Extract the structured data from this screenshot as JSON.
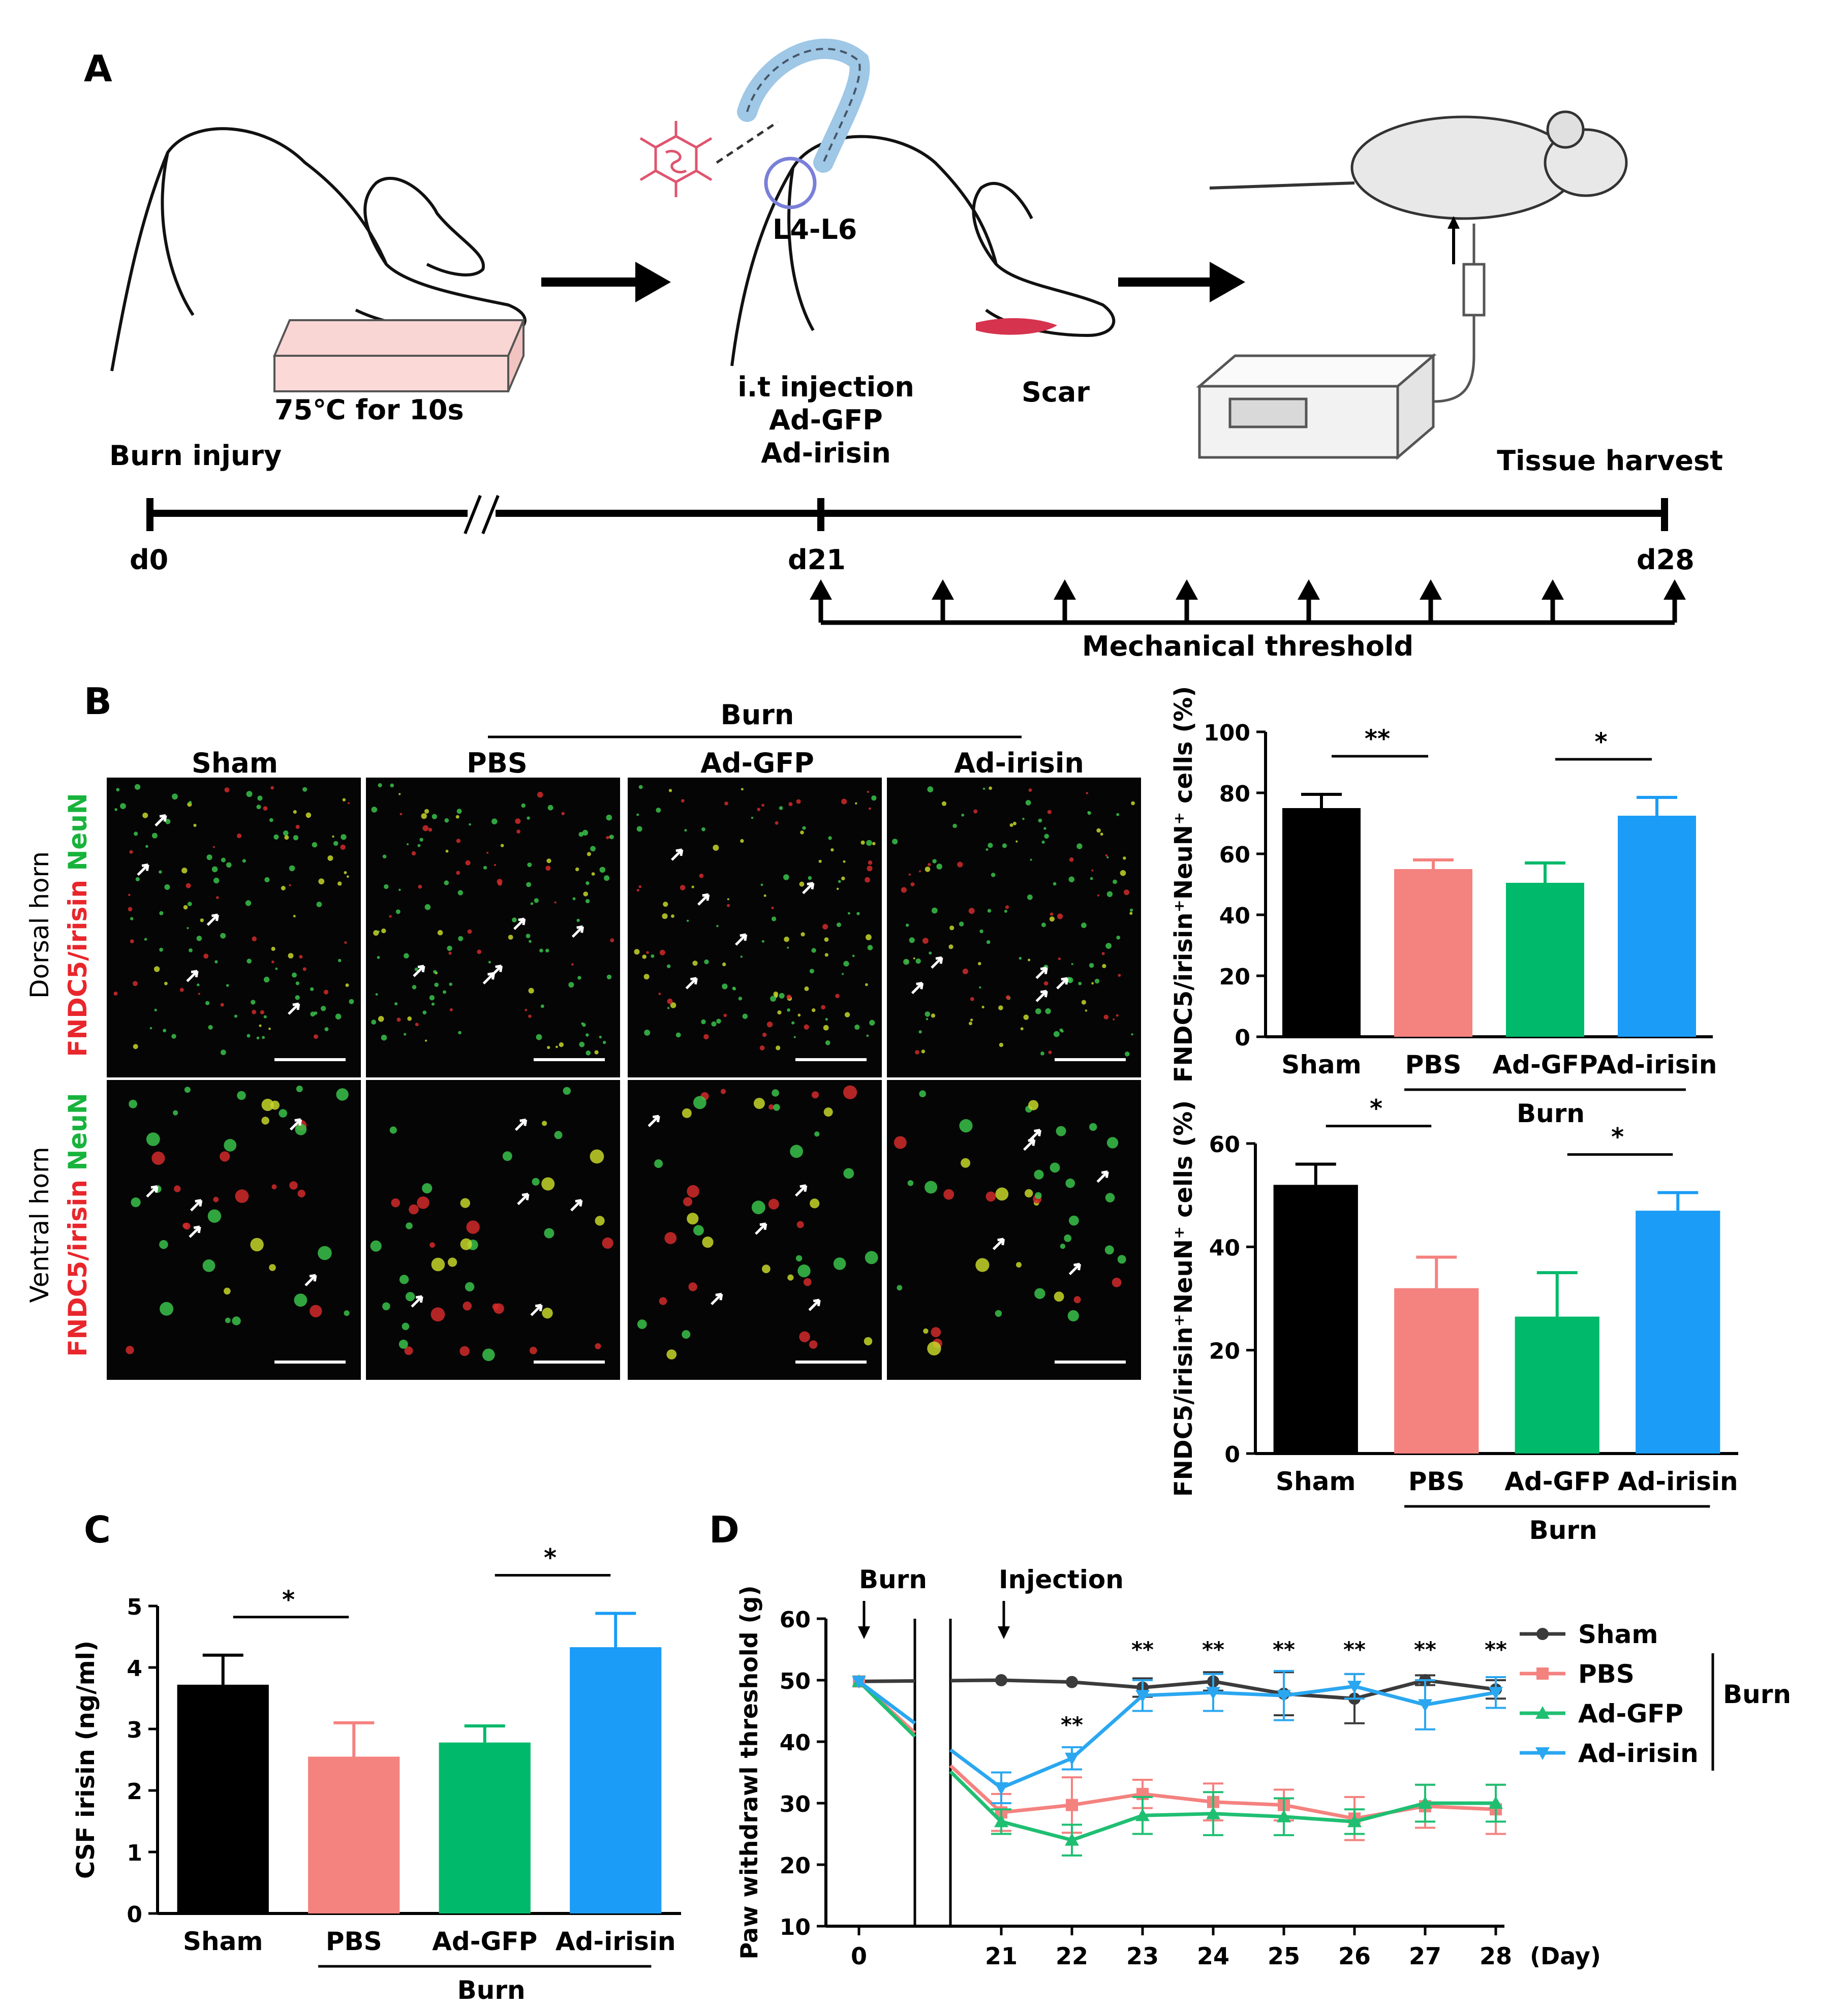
{
  "panel_letters": [
    "A",
    "B",
    "C",
    "D"
  ],
  "panel_a": {
    "heat_label": "75℃ for 10s",
    "spine_label": "L4-L6",
    "injection_lines": [
      "i.t injection",
      "Ad-GFP",
      "Ad-irisin"
    ],
    "scar_label": "Scar",
    "burn_label": "Burn injury",
    "harvest_label": "Tissue harvest",
    "day_start": "d0",
    "day_inject": "d21",
    "day_end": "d28",
    "threshold_label": "Mechanical threshold"
  },
  "panel_b": {
    "burn_group_label": "Burn",
    "columns": [
      "Sham",
      "PBS",
      "Ad-GFP",
      "Ad-irisin"
    ],
    "rows": [
      {
        "region": "Dorsal horn",
        "stain_red": "FNDC5/irisin",
        "stain_green": "NeuN"
      },
      {
        "region": "Ventral horn",
        "stain_red": "FNDC5/irisin",
        "stain_green": "NeuN"
      }
    ]
  },
  "colors": {
    "sham": "#000000",
    "pbs": "#f4827f",
    "ad_gfp": "#00b96b",
    "ad_irisin": "#1b9cf6",
    "line_sham": "#3b3b3b",
    "line_pbs": "#f4827f",
    "line_gfp": "#1fbf72",
    "line_irisin": "#2aa7f0"
  },
  "chart_data": [
    {
      "id": "b_dorsal",
      "type": "bar",
      "ylabel": "FNDC5/irisin⁺NeuN⁺ cells (%)",
      "categories": [
        "Sham",
        "PBS",
        "Ad-GFP",
        "Ad-irisin"
      ],
      "values": [
        75,
        55,
        50.5,
        72.5
      ],
      "errors": [
        4.5,
        3,
        6.5,
        6
      ],
      "ylim": [
        0,
        100
      ],
      "yticks": [
        0,
        20,
        40,
        60,
        80,
        100
      ],
      "group_label": "Burn",
      "significance": [
        {
          "from": 0,
          "to": 1,
          "label": "**"
        },
        {
          "from": 2,
          "to": 3,
          "label": "*"
        }
      ]
    },
    {
      "id": "b_ventral",
      "type": "bar",
      "ylabel": "FNDC5/irisin⁺NeuN⁺ cells (%)",
      "categories": [
        "Sham",
        "PBS",
        "Ad-GFP",
        "Ad-irisin"
      ],
      "values": [
        52,
        32,
        26.5,
        47
      ],
      "errors": [
        4,
        6,
        8.5,
        3.5
      ],
      "ylim": [
        0,
        60
      ],
      "yticks": [
        0,
        20,
        40,
        60
      ],
      "group_label": "Burn",
      "significance": [
        {
          "from": 0,
          "to": 1,
          "label": "*"
        },
        {
          "from": 2,
          "to": 3,
          "label": "*"
        }
      ]
    },
    {
      "id": "c_csf",
      "type": "bar",
      "ylabel": "CSF irisin (ng/ml)",
      "categories": [
        "Sham",
        "PBS",
        "Ad-GFP",
        "Ad-irisin"
      ],
      "values": [
        3.72,
        2.55,
        2.78,
        4.33
      ],
      "errors": [
        0.48,
        0.55,
        0.27,
        0.55
      ],
      "ylim": [
        0,
        5
      ],
      "yticks": [
        0,
        1,
        2,
        3,
        4,
        5
      ],
      "group_label": "Burn",
      "significance": [
        {
          "from": 0,
          "to": 1,
          "label": "*"
        },
        {
          "from": 2,
          "to": 3,
          "label": "*"
        }
      ]
    },
    {
      "id": "d_threshold",
      "type": "line",
      "ylabel": "Paw withdrawl threshold (g)",
      "xlabel": "(Day)",
      "x": [
        0,
        21,
        22,
        23,
        24,
        25,
        26,
        27,
        28
      ],
      "xtick_labels": [
        "0",
        "21",
        "22",
        "23",
        "24",
        "25",
        "26",
        "27",
        "28"
      ],
      "ylim": [
        10,
        60
      ],
      "yticks": [
        10,
        20,
        30,
        40,
        50,
        60
      ],
      "annotations": {
        "burn": "Burn",
        "injection": "Injection",
        "sig_star": "**",
        "burn_bracket": "Burn"
      },
      "star_days": [
        23,
        24,
        25,
        26,
        27,
        28
      ],
      "series": [
        {
          "name": "Sham",
          "values": [
            49.8,
            50,
            49.7,
            48.8,
            49.8,
            47.8,
            47,
            50,
            48.5
          ],
          "errors": [
            0,
            0,
            0,
            1.5,
            1.5,
            3.5,
            4,
            0.8,
            1.5
          ]
        },
        {
          "name": "PBS",
          "values": [
            49.8,
            28.5,
            29.7,
            31.5,
            30.2,
            29.7,
            27.5,
            29.5,
            29
          ],
          "errors": [
            0,
            3,
            4.5,
            2.3,
            3,
            2.5,
            3.5,
            3.5,
            4
          ]
        },
        {
          "name": "Ad-GFP",
          "values": [
            49.8,
            27,
            24,
            28,
            28.3,
            27.8,
            27,
            30,
            30
          ],
          "errors": [
            0,
            2,
            2.5,
            3,
            3.5,
            3,
            2,
            3,
            3
          ]
        },
        {
          "name": "Ad-irisin",
          "values": [
            49.8,
            32.5,
            37.3,
            47.5,
            48,
            47.5,
            49,
            46,
            48
          ],
          "errors": [
            0,
            2.5,
            1.8,
            2.5,
            3,
            4,
            2,
            4,
            2.5
          ]
        }
      ]
    }
  ]
}
